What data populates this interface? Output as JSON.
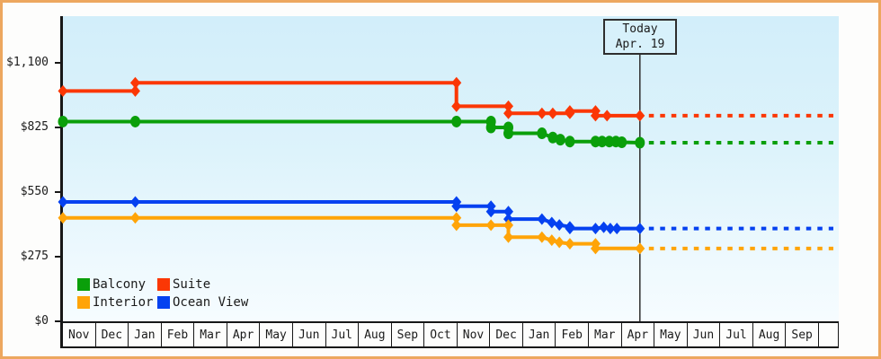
{
  "chart_data": {
    "type": "line",
    "title": "",
    "subtitle": "",
    "unit": "USD",
    "grid": "off",
    "y_axis": {
      "min": 0,
      "max": 1100,
      "tick_interval": 275,
      "ticks": [
        {
          "label": "$1,100",
          "value": 1100
        },
        {
          "label": "$825",
          "value": 825
        },
        {
          "label": "$550",
          "value": 550
        },
        {
          "label": "$275",
          "value": 275
        },
        {
          "label": "$0",
          "value": 0
        }
      ]
    },
    "x_axis": {
      "months": [
        "Nov",
        "Dec",
        "Jan",
        "Feb",
        "Mar",
        "Apr",
        "May",
        "Jun",
        "Jul",
        "Aug",
        "Sep",
        "Oct",
        "Nov",
        "Dec",
        "Jan",
        "Feb",
        "Mar",
        "Apr",
        "May",
        "Jun",
        "Jul",
        "Aug",
        "Sep"
      ]
    },
    "today": {
      "line1": "Today",
      "line2": "Apr. 19",
      "month_index": 17.55
    },
    "series": [
      {
        "name": "Suite",
        "color": "#fb3705",
        "marker": "diamond",
        "points": [
          [
            0,
            980
          ],
          [
            2.2,
            980
          ],
          [
            2.2,
            1015
          ],
          [
            11.97,
            1015
          ],
          [
            11.97,
            915
          ],
          [
            13.55,
            915
          ],
          [
            13.55,
            885
          ],
          [
            14.57,
            885
          ],
          [
            14.9,
            885
          ],
          [
            15.42,
            885
          ],
          [
            15.42,
            895
          ],
          [
            16.2,
            895
          ],
          [
            16.2,
            875
          ],
          [
            16.55,
            875
          ],
          [
            17.55,
            875
          ]
        ],
        "forecast_price": 875
      },
      {
        "name": "Balcony",
        "color": "#0a9f0a",
        "marker": "circle",
        "points": [
          [
            0,
            850
          ],
          [
            2.2,
            850
          ],
          [
            11.97,
            850
          ],
          [
            13.02,
            850
          ],
          [
            13.02,
            825
          ],
          [
            13.55,
            825
          ],
          [
            13.55,
            800
          ],
          [
            14.57,
            800
          ],
          [
            14.9,
            782
          ],
          [
            15.13,
            773
          ],
          [
            15.42,
            765
          ],
          [
            16.2,
            765
          ],
          [
            16.4,
            765
          ],
          [
            16.62,
            765
          ],
          [
            16.82,
            765
          ],
          [
            17.0,
            762
          ],
          [
            17.55,
            760
          ]
        ],
        "forecast_price": 760
      },
      {
        "name": "Ocean View",
        "color": "#0541f0",
        "marker": "diamond",
        "points": [
          [
            0,
            508
          ],
          [
            2.2,
            508
          ],
          [
            11.97,
            508
          ],
          [
            11.97,
            490
          ],
          [
            13.02,
            490
          ],
          [
            13.02,
            467
          ],
          [
            13.55,
            467
          ],
          [
            13.55,
            435
          ],
          [
            14.57,
            435
          ],
          [
            14.87,
            420
          ],
          [
            15.1,
            410
          ],
          [
            15.42,
            402
          ],
          [
            15.42,
            395
          ],
          [
            16.2,
            395
          ],
          [
            16.45,
            400
          ],
          [
            16.65,
            395
          ],
          [
            16.85,
            395
          ],
          [
            17.55,
            395
          ]
        ],
        "forecast_price": 395
      },
      {
        "name": "Interior",
        "color": "#ffa408",
        "marker": "diamond",
        "points": [
          [
            0,
            440
          ],
          [
            2.2,
            440
          ],
          [
            11.97,
            440
          ],
          [
            11.97,
            409
          ],
          [
            13.02,
            409
          ],
          [
            13.55,
            409
          ],
          [
            13.55,
            358
          ],
          [
            14.57,
            358
          ],
          [
            14.87,
            345
          ],
          [
            15.1,
            336
          ],
          [
            15.42,
            330
          ],
          [
            16.2,
            330
          ],
          [
            16.2,
            310
          ],
          [
            17.55,
            310
          ]
        ],
        "forecast_price": 310
      }
    ],
    "legend_items": [
      {
        "label": "Balcony",
        "color": "#0a9f0a"
      },
      {
        "label": "Suite",
        "color": "#fb3705"
      },
      {
        "label": "Interior",
        "color": "#ffa408"
      },
      {
        "label": "Ocean View",
        "color": "#0541f0"
      }
    ],
    "legend_position": "bottom-left-inside"
  }
}
